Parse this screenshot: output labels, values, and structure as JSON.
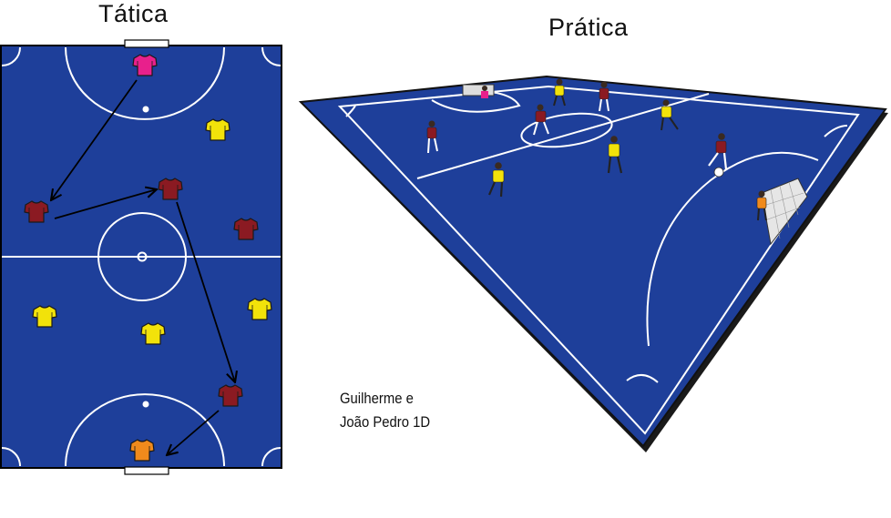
{
  "titles": {
    "tactical": "Tática",
    "practical": "Prática"
  },
  "credits": {
    "line1": "Guilherme e",
    "line2": "João Pedro 1D"
  },
  "colors": {
    "court": "#1e3f9a",
    "lines": "#ffffff",
    "team_red": "#8b1a22",
    "team_yellow": "#f2e20a",
    "goalkeeper_top": "#e8208c",
    "goalkeeper_bottom": "#f08a1c",
    "arrow": "#000000"
  },
  "tactical_board": {
    "players": [
      {
        "role": "goalkeeper",
        "team": "pink"
      },
      {
        "role": "player",
        "team": "yellow"
      },
      {
        "role": "player",
        "team": "red"
      },
      {
        "role": "player",
        "team": "red"
      },
      {
        "role": "player",
        "team": "red"
      },
      {
        "role": "player",
        "team": "yellow"
      },
      {
        "role": "player",
        "team": "yellow"
      },
      {
        "role": "player",
        "team": "yellow"
      },
      {
        "role": "player",
        "team": "red"
      },
      {
        "role": "goalkeeper",
        "team": "orange"
      }
    ],
    "passes": 4
  }
}
